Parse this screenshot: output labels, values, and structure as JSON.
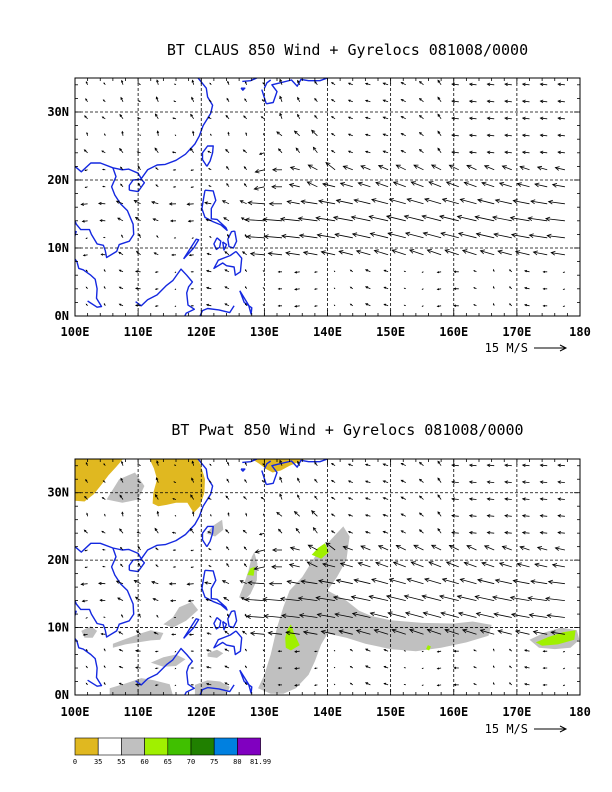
{
  "chart_data": [
    {
      "type": "vector-map",
      "title": "BT CLAUS 850 Wind + Gyrelocs 081008/0000",
      "x_ticks": [
        "100E",
        "110E",
        "120E",
        "130E",
        "140E",
        "150E",
        "160E",
        "170E",
        "180"
      ],
      "y_ticks": [
        "0N",
        "10N",
        "20N",
        "30N"
      ],
      "xlim": [
        100,
        180
      ],
      "ylim": [
        0,
        35
      ],
      "reference_vector": "15 M/S",
      "grid": true
    },
    {
      "type": "vector-map",
      "title": "BT Pwat 850 Wind + Gyrelocs 081008/0000",
      "x_ticks": [
        "100E",
        "110E",
        "120E",
        "130E",
        "140E",
        "150E",
        "160E",
        "170E",
        "180"
      ],
      "y_ticks": [
        "0N",
        "10N",
        "20N",
        "30N"
      ],
      "xlim": [
        100,
        180
      ],
      "ylim": [
        0,
        35
      ],
      "reference_vector": "15 M/S",
      "grid": true,
      "colorbar": {
        "labels": [
          "0",
          "35",
          "55",
          "60",
          "65",
          "70",
          "75",
          "80",
          "81.99"
        ],
        "colors": [
          "#e0b820",
          "#ffffff",
          "#c0c0c0",
          "#a0f000",
          "#40c000",
          "#208000",
          "#0080e0",
          "#8000c0"
        ]
      }
    }
  ],
  "colors": {
    "coast": "#1428e0",
    "grid": "#000000",
    "arrow": "#000000"
  }
}
